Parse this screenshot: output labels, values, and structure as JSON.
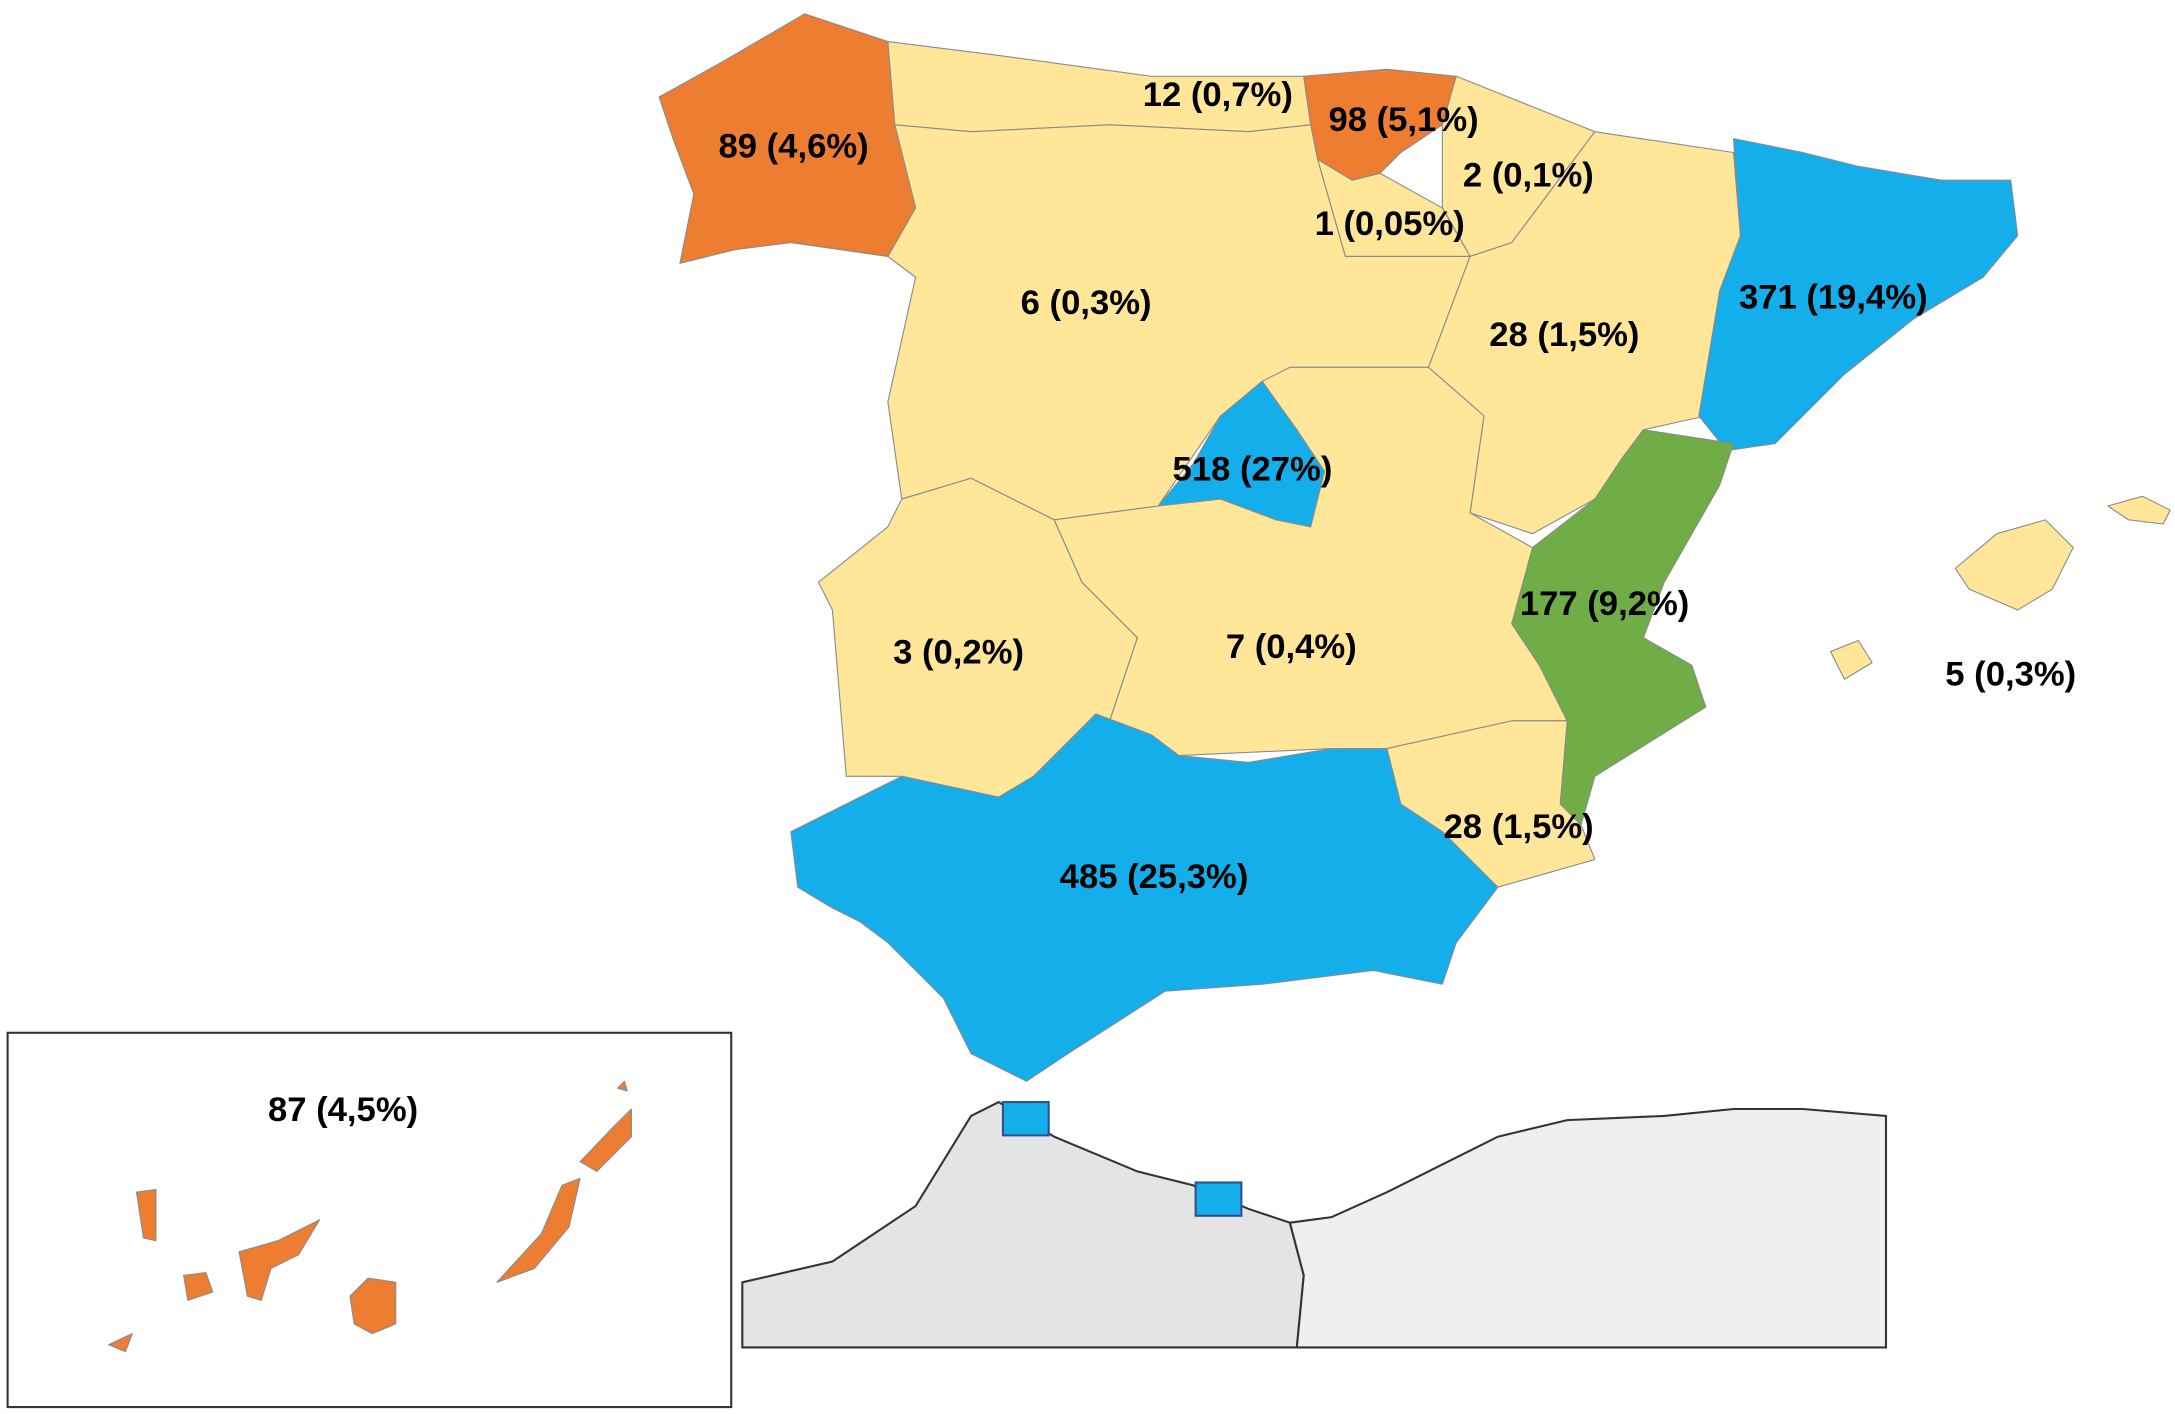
{
  "regions": [
    {
      "label": "89 (4,6%)",
      "color": "#ed7d31"
    },
    {
      "label": "12 (0,7%)",
      "color": "#ffe699"
    },
    {
      "label": "98 (5,1%)",
      "color": "#ed7d31"
    },
    {
      "label": "2 (0,1%)",
      "color": "#ffe699"
    },
    {
      "label": "1 (0,05%)",
      "color": "#ffe699"
    },
    {
      "label": "6 (0,3%)",
      "color": "#ffe699"
    },
    {
      "label": "28 (1,5%)",
      "color": "#ffe699"
    },
    {
      "label": "371 (19,4%)",
      "color": "#14aeea"
    },
    {
      "label": "518 (27%)",
      "color": "#14aeea"
    },
    {
      "label": "177 (9,2%)",
      "color": "#70ad47"
    },
    {
      "label": "3 (0,2%)",
      "color": "#ffe699"
    },
    {
      "label": "7 (0,4%)",
      "color": "#ffe699"
    },
    {
      "label": "5 (0,3%)",
      "color": "#ffe699"
    },
    {
      "label": "28 (1,5%)",
      "color": "#ffe699"
    },
    {
      "label": "485 (25,3%)",
      "color": "#14aeea"
    },
    {
      "label": "87 (4,5%)",
      "color": "#ed7d31"
    }
  ]
}
